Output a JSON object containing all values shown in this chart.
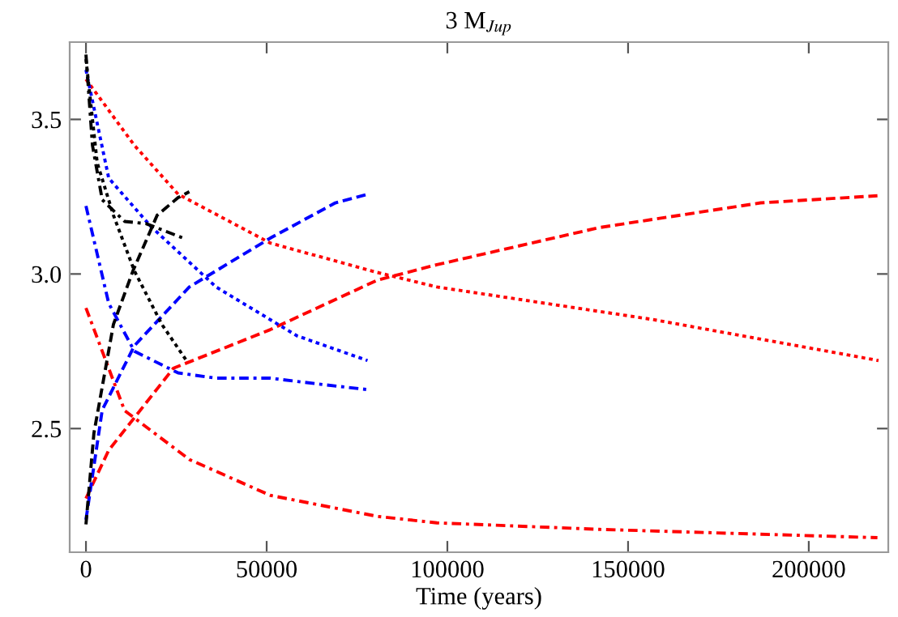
{
  "chart_data": {
    "type": "line",
    "title": "3 M$_{Jup}$",
    "xlabel": "Time (years)",
    "xlim": [
      -4500,
      222000
    ],
    "ylim": [
      2.1,
      3.75
    ],
    "xticks": [
      0,
      50000,
      100000,
      150000,
      200000
    ],
    "yticks": [
      {
        "value": 2.5,
        "label": "2.5"
      },
      {
        "value": 3.0,
        "label": "3.0"
      },
      {
        "value": 3.5,
        "label": "3.5"
      }
    ],
    "marker": "none",
    "series": [
      {
        "color": "#ff0000",
        "line_style": "dotted",
        "x": [
          0,
          13400,
          25500,
          51000,
          80600,
          97100,
          156700,
          219300
        ],
        "values": [
          3.63,
          3.416,
          3.258,
          3.1,
          3.005,
          2.958,
          2.853,
          2.72
        ]
      },
      {
        "color": "#ff0000",
        "line_style": "dashed",
        "x": [
          0,
          6300,
          24200,
          51000,
          80600,
          97100,
          142000,
          186700,
          219000
        ],
        "values": [
          2.274,
          2.43,
          2.695,
          2.82,
          2.98,
          3.03,
          3.15,
          3.23,
          3.253
        ]
      },
      {
        "color": "#ff0000",
        "line_style": "dashdot",
        "x": [
          0,
          10700,
          28600,
          51000,
          80600,
          97100,
          142000,
          219000
        ],
        "values": [
          2.89,
          2.558,
          2.4,
          2.284,
          2.216,
          2.195,
          2.174,
          2.147
        ]
      },
      {
        "color": "#0000ff",
        "line_style": "dotted",
        "x": [
          0,
          6300,
          18000,
          36000,
          58400,
          77900
        ],
        "values": [
          3.66,
          3.31,
          3.153,
          2.958,
          2.8,
          2.72
        ]
      },
      {
        "color": "#0000ff",
        "line_style": "dashed",
        "x": [
          0,
          4500,
          13400,
          28600,
          51000,
          69000,
          77900
        ],
        "values": [
          2.205,
          2.56,
          2.768,
          2.958,
          3.116,
          3.23,
          3.258
        ]
      },
      {
        "color": "#0000ff",
        "line_style": "dashdot",
        "x": [
          0,
          6300,
          13400,
          25500,
          36000,
          51000,
          65800,
          77900
        ],
        "values": [
          3.22,
          2.905,
          2.75,
          2.68,
          2.663,
          2.663,
          2.642,
          2.626
        ]
      },
      {
        "color": "#000000",
        "line_style": "dashed",
        "x": [
          0,
          2200,
          7600,
          13000,
          19700,
          25500,
          28600
        ],
        "values": [
          2.19,
          2.485,
          2.837,
          3.01,
          3.19,
          3.247,
          3.266
        ]
      },
      {
        "color": "#000000",
        "line_style": "dotted",
        "x": [
          0,
          3100,
          7600,
          13400,
          21000,
          27800
        ],
        "values": [
          3.695,
          3.36,
          3.19,
          3.01,
          2.837,
          2.72
        ]
      },
      {
        "color": "#000000",
        "line_style": "dashdot",
        "x": [
          0,
          1800,
          4500,
          10700,
          16600,
          26900
        ],
        "values": [
          3.71,
          3.416,
          3.24,
          3.17,
          3.163,
          3.116
        ]
      }
    ]
  }
}
